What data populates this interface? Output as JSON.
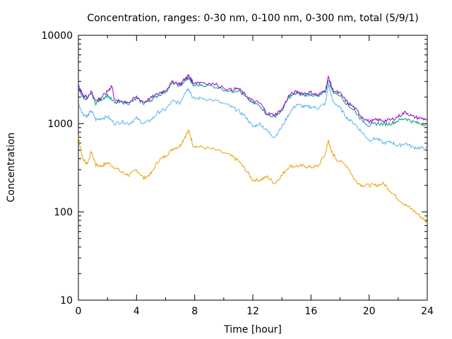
{
  "chart_data": {
    "type": "line",
    "title": "Concentration, ranges: 0-30 nm, 0-100 nm, 0-300 nm, total (5/9/1)",
    "xlabel": "Time [hour]",
    "ylabel": "Concentration",
    "xlim": [
      0,
      24
    ],
    "ylim": [
      10,
      10000
    ],
    "yscale": "log",
    "grid": false,
    "legend": "none",
    "x_ticks": [
      {
        "v": 0,
        "label": "0"
      },
      {
        "v": 4,
        "label": "4"
      },
      {
        "v": 8,
        "label": "8"
      },
      {
        "v": 12,
        "label": "12"
      },
      {
        "v": 16,
        "label": "16"
      },
      {
        "v": 20,
        "label": "20"
      },
      {
        "v": 24,
        "label": "24"
      }
    ],
    "y_ticks": [
      {
        "v": 10,
        "label": "10"
      },
      {
        "v": 100,
        "label": "100"
      },
      {
        "v": 1000,
        "label": "1000"
      },
      {
        "v": 10000,
        "label": "10000"
      }
    ],
    "series": [
      {
        "color": "#e6a000",
        "points": [
          [
            0,
            700
          ],
          [
            0.3,
            400
          ],
          [
            0.6,
            350
          ],
          [
            0.9,
            480
          ],
          [
            1.2,
            340
          ],
          [
            1.6,
            330
          ],
          [
            2,
            360
          ],
          [
            2.5,
            320
          ],
          [
            3,
            280
          ],
          [
            3.5,
            260
          ],
          [
            4,
            300
          ],
          [
            4.5,
            240
          ],
          [
            5,
            270
          ],
          [
            5.5,
            380
          ],
          [
            6,
            430
          ],
          [
            6.5,
            520
          ],
          [
            7,
            560
          ],
          [
            7.3,
            700
          ],
          [
            7.6,
            830
          ],
          [
            7.9,
            560
          ],
          [
            8.5,
            540
          ],
          [
            9.5,
            500
          ],
          [
            10.5,
            430
          ],
          [
            11,
            380
          ],
          [
            11.5,
            300
          ],
          [
            12,
            230
          ],
          [
            12.5,
            230
          ],
          [
            13,
            250
          ],
          [
            13.5,
            210
          ],
          [
            14,
            260
          ],
          [
            14.5,
            330
          ],
          [
            15,
            330
          ],
          [
            15.5,
            330
          ],
          [
            16,
            320
          ],
          [
            16.5,
            330
          ],
          [
            17,
            460
          ],
          [
            17.2,
            650
          ],
          [
            17.4,
            480
          ],
          [
            17.8,
            390
          ],
          [
            18.5,
            330
          ],
          [
            19,
            230
          ],
          [
            19.5,
            200
          ],
          [
            20,
            200
          ],
          [
            20.5,
            200
          ],
          [
            21,
            210
          ],
          [
            21.5,
            170
          ],
          [
            22,
            140
          ],
          [
            22.5,
            120
          ],
          [
            23,
            105
          ],
          [
            23.5,
            90
          ],
          [
            24,
            75
          ]
        ]
      },
      {
        "color": "#56b4e9",
        "points": [
          [
            0,
            1700
          ],
          [
            0.3,
            1300
          ],
          [
            0.6,
            1200
          ],
          [
            0.9,
            1400
          ],
          [
            1.2,
            1100
          ],
          [
            1.6,
            1150
          ],
          [
            2,
            1200
          ],
          [
            2.5,
            1000
          ],
          [
            3,
            1050
          ],
          [
            3.5,
            1000
          ],
          [
            4,
            1150
          ],
          [
            4.5,
            1000
          ],
          [
            5,
            1100
          ],
          [
            5.5,
            1350
          ],
          [
            6,
            1450
          ],
          [
            6.5,
            1800
          ],
          [
            7,
            1700
          ],
          [
            7.4,
            2400
          ],
          [
            7.6,
            2500
          ],
          [
            7.9,
            1900
          ],
          [
            8.5,
            1950
          ],
          [
            9.5,
            1800
          ],
          [
            10.5,
            1550
          ],
          [
            11,
            1400
          ],
          [
            11.5,
            1200
          ],
          [
            12,
            920
          ],
          [
            12.5,
            1000
          ],
          [
            13,
            820
          ],
          [
            13.5,
            700
          ],
          [
            14,
            920
          ],
          [
            14.5,
            1300
          ],
          [
            15,
            1650
          ],
          [
            15.5,
            1550
          ],
          [
            16,
            1550
          ],
          [
            16.5,
            1500
          ],
          [
            17,
            1700
          ],
          [
            17.2,
            2800
          ],
          [
            17.5,
            1800
          ],
          [
            18,
            1500
          ],
          [
            18.5,
            1150
          ],
          [
            19,
            1000
          ],
          [
            19.5,
            800
          ],
          [
            20,
            650
          ],
          [
            20.5,
            680
          ],
          [
            21,
            600
          ],
          [
            21.5,
            620
          ],
          [
            22,
            560
          ],
          [
            22.5,
            600
          ],
          [
            23,
            540
          ],
          [
            23.5,
            530
          ],
          [
            24,
            520
          ]
        ]
      },
      {
        "color": "#009e73",
        "points": [
          [
            0,
            2500
          ],
          [
            0.3,
            2000
          ],
          [
            0.6,
            1900
          ],
          [
            0.9,
            2200
          ],
          [
            1.2,
            1700
          ],
          [
            1.6,
            1900
          ],
          [
            2,
            2100
          ],
          [
            2.5,
            1700
          ],
          [
            3,
            1750
          ],
          [
            3.5,
            1700
          ],
          [
            4,
            1900
          ],
          [
            4.5,
            1700
          ],
          [
            5,
            1850
          ],
          [
            5.5,
            2100
          ],
          [
            6,
            2300
          ],
          [
            6.5,
            2900
          ],
          [
            7,
            2700
          ],
          [
            7.4,
            3100
          ],
          [
            7.6,
            3300
          ],
          [
            7.9,
            2700
          ],
          [
            8.5,
            2750
          ],
          [
            9.5,
            2600
          ],
          [
            10.5,
            2300
          ],
          [
            11,
            2400
          ],
          [
            11.5,
            2000
          ],
          [
            12,
            1700
          ],
          [
            12.5,
            1600
          ],
          [
            13,
            1250
          ],
          [
            13.5,
            1200
          ],
          [
            14,
            1400
          ],
          [
            14.5,
            2000
          ],
          [
            15,
            2200
          ],
          [
            15.5,
            2100
          ],
          [
            16,
            2150
          ],
          [
            16.5,
            2000
          ],
          [
            17,
            2300
          ],
          [
            17.2,
            3200
          ],
          [
            17.5,
            2300
          ],
          [
            18,
            2100
          ],
          [
            18.5,
            1650
          ],
          [
            19,
            1400
          ],
          [
            19.5,
            1100
          ],
          [
            20,
            950
          ],
          [
            20.5,
            1000
          ],
          [
            21,
            990
          ],
          [
            21.5,
            1000
          ],
          [
            22,
            1080
          ],
          [
            22.5,
            1150
          ],
          [
            23,
            1050
          ],
          [
            23.5,
            1000
          ],
          [
            24,
            970
          ]
        ]
      },
      {
        "color": "#9400d3",
        "points": [
          [
            0,
            2700
          ],
          [
            0.3,
            2100
          ],
          [
            0.6,
            2000
          ],
          [
            0.9,
            2300
          ],
          [
            1.2,
            1800
          ],
          [
            1.6,
            2000
          ],
          [
            2,
            2300
          ],
          [
            2.3,
            2700
          ],
          [
            2.5,
            1800
          ],
          [
            3,
            1800
          ],
          [
            3.5,
            1750
          ],
          [
            4,
            2000
          ],
          [
            4.5,
            1750
          ],
          [
            5,
            1950
          ],
          [
            5.5,
            2200
          ],
          [
            6,
            2400
          ],
          [
            6.5,
            3000
          ],
          [
            7,
            2800
          ],
          [
            7.4,
            3300
          ],
          [
            7.6,
            3500
          ],
          [
            7.9,
            2900
          ],
          [
            8.5,
            2950
          ],
          [
            9.5,
            2750
          ],
          [
            10.5,
            2400
          ],
          [
            11,
            2500
          ],
          [
            11.5,
            2100
          ],
          [
            12,
            1800
          ],
          [
            12.5,
            1700
          ],
          [
            13,
            1300
          ],
          [
            13.5,
            1250
          ],
          [
            14,
            1450
          ],
          [
            14.5,
            2100
          ],
          [
            15,
            2300
          ],
          [
            15.5,
            2200
          ],
          [
            16,
            2250
          ],
          [
            16.5,
            2100
          ],
          [
            17,
            2400
          ],
          [
            17.2,
            3400
          ],
          [
            17.5,
            2400
          ],
          [
            18,
            2200
          ],
          [
            18.5,
            1750
          ],
          [
            19,
            1500
          ],
          [
            19.5,
            1200
          ],
          [
            20,
            1050
          ],
          [
            20.5,
            1100
          ],
          [
            21,
            1080
          ],
          [
            21.5,
            1100
          ],
          [
            22,
            1200
          ],
          [
            22.5,
            1350
          ],
          [
            23,
            1200
          ],
          [
            23.5,
            1150
          ],
          [
            24,
            1120
          ]
        ]
      }
    ]
  }
}
